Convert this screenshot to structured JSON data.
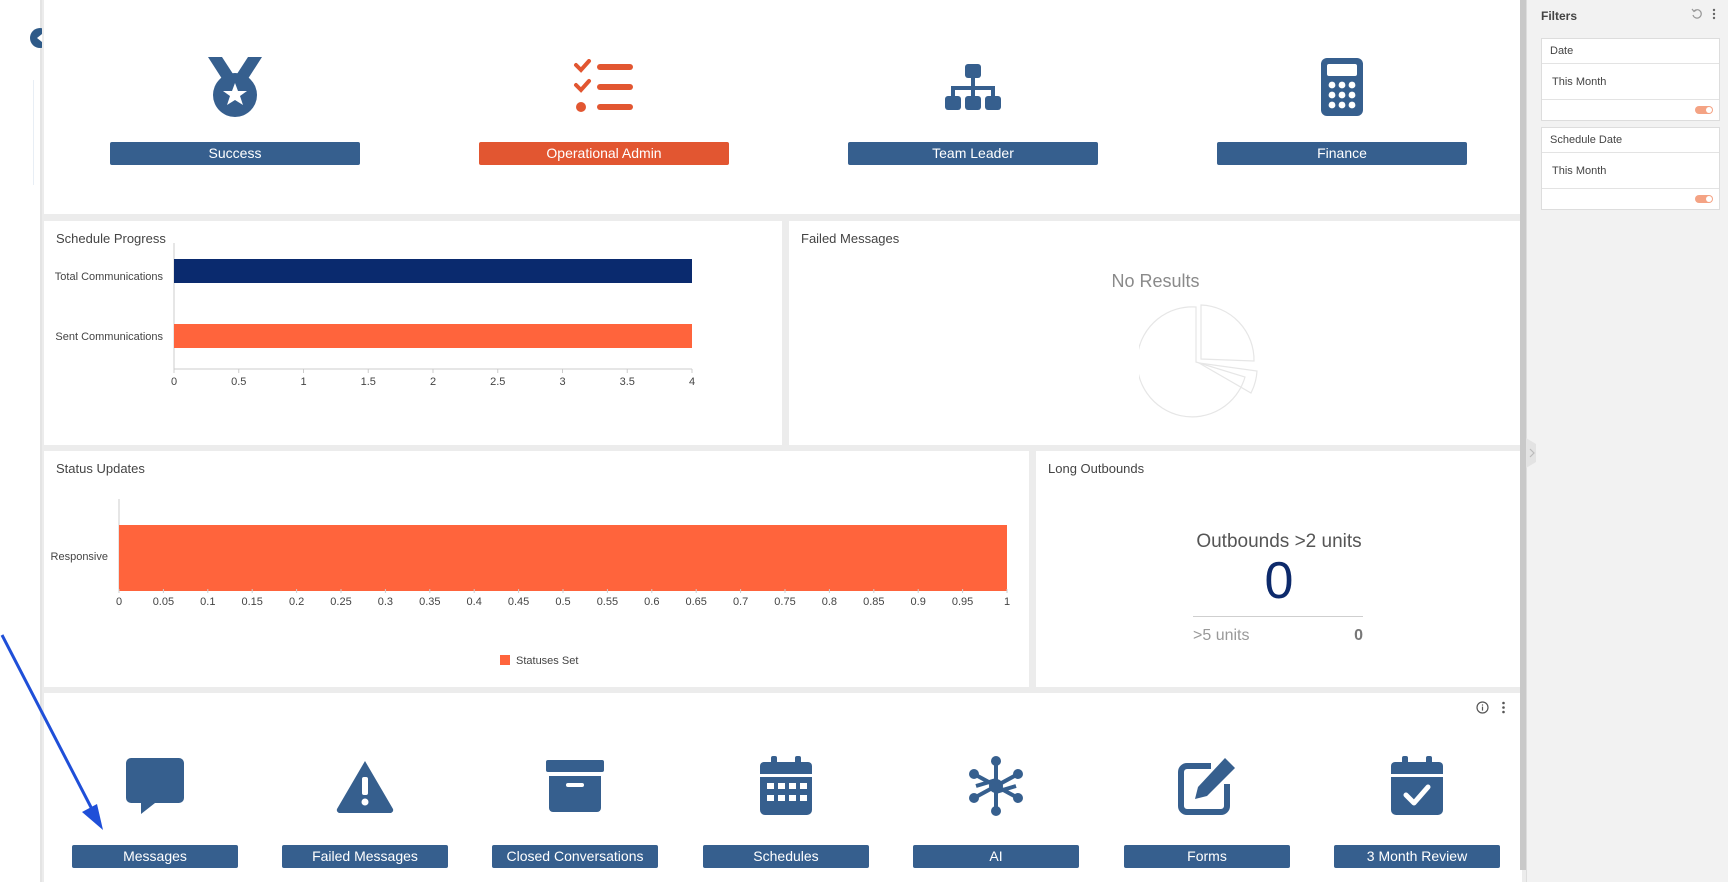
{
  "top_tiles": [
    {
      "label": "Success",
      "icon": "medal-icon",
      "active": false
    },
    {
      "label": "Operational Admin",
      "icon": "checklist-icon",
      "active": true
    },
    {
      "label": "Team Leader",
      "icon": "org-chart-icon",
      "active": false
    },
    {
      "label": "Finance",
      "icon": "calculator-icon",
      "active": false
    }
  ],
  "schedule_progress": {
    "title": "Schedule Progress"
  },
  "failed_messages": {
    "title": "Failed Messages",
    "empty_text": "No Results"
  },
  "status_updates": {
    "title": "Status Updates"
  },
  "long_outbounds": {
    "title": "Long Outbounds",
    "kpi_label": "Outbounds >2 units",
    "kpi_value": "0",
    "sub_label": ">5 units",
    "sub_value": "0"
  },
  "bottom_tiles": [
    {
      "label": "Messages",
      "icon": "chat-bubble-icon"
    },
    {
      "label": "Failed Messages",
      "icon": "warning-triangle-icon"
    },
    {
      "label": "Closed Conversations",
      "icon": "archive-box-icon"
    },
    {
      "label": "Schedules",
      "icon": "calendar-grid-icon"
    },
    {
      "label": "AI",
      "icon": "network-nodes-icon"
    },
    {
      "label": "Forms",
      "icon": "edit-pen-icon"
    },
    {
      "label": "3 Month Review",
      "icon": "calendar-check-icon"
    }
  ],
  "filters": {
    "title": "Filters",
    "cards": [
      {
        "title": "Date",
        "value": "This Month"
      },
      {
        "title": "Schedule Date",
        "value": "This Month"
      }
    ]
  },
  "colors": {
    "brand_blue": "#365f8e",
    "accent_orange": "#e25631",
    "bar_navy": "#0a2a6e",
    "bar_orange": "#ff643c"
  },
  "chart_data": [
    {
      "type": "bar",
      "orientation": "horizontal",
      "title": "Schedule Progress",
      "categories": [
        "Total Communications",
        "Sent Communications"
      ],
      "series": [
        {
          "values": [
            4,
            4
          ]
        }
      ],
      "xlim": [
        0,
        4
      ],
      "xticks": [
        "0",
        "0.5",
        "1",
        "1.5",
        "2",
        "2.5",
        "3",
        "3.5",
        "4"
      ]
    },
    {
      "type": "bar",
      "orientation": "horizontal",
      "title": "Status Updates",
      "categories": [
        "Responsive"
      ],
      "series": [
        {
          "name": "Statuses Set",
          "values": [
            1
          ]
        }
      ],
      "xlim": [
        0,
        1
      ],
      "xticks": [
        "0",
        "0.05",
        "0.1",
        "0.15",
        "0.2",
        "0.25",
        "0.3",
        "0.35",
        "0.4",
        "0.45",
        "0.5",
        "0.55",
        "0.6",
        "0.65",
        "0.7",
        "0.75",
        "0.8",
        "0.85",
        "0.9",
        "0.95",
        "1"
      ],
      "legend": "bottom-center"
    }
  ]
}
